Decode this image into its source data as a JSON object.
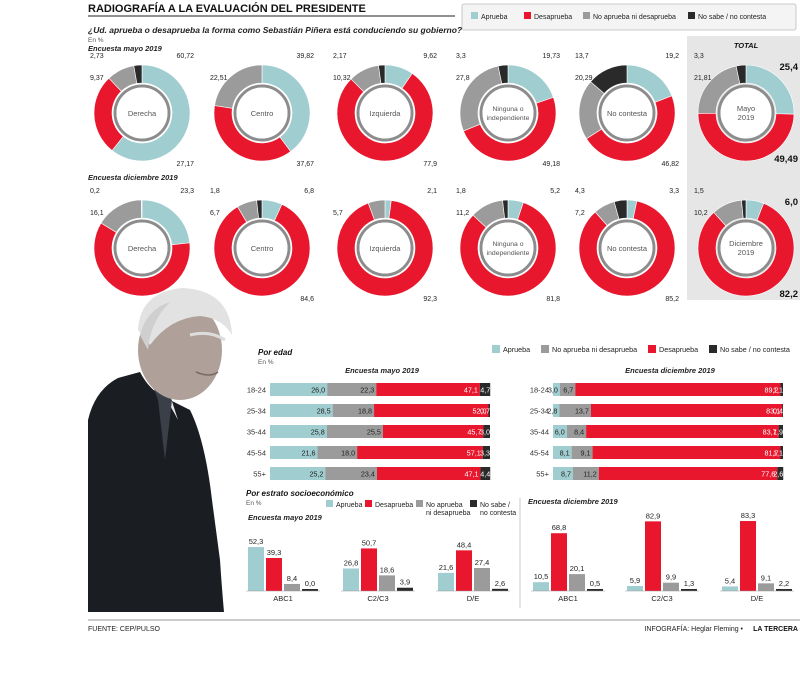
{
  "header": {
    "title": "RADIOGRAFÍA A LA EVALUACIÓN DEL PRESIDENTE",
    "question": "¿Ud. aprueba o desaprueba la forma como Sebastián Piñera está conduciendo su gobierno?",
    "unit": "En %",
    "survey_may": "Encuesta mayo 2019",
    "survey_dec": "Encuesta diciembre 2019",
    "total_label": "TOTAL"
  },
  "colors": {
    "aprueba": "#9fcdd0",
    "desaprueba": "#e8172d",
    "ninguno": "#9b9b9b",
    "nosabe": "#2a2a2a",
    "total_bg": "#e6e6e6"
  },
  "legend_top": [
    "Aprueba",
    "Desaprueba",
    "No aprueba ni desaprueba",
    "No sabe / no contesta"
  ],
  "legend_age": [
    "Aprueba",
    "No aprueba ni desaprueba",
    "Desaprueba",
    "No sabe / no contesta"
  ],
  "chart_data": [
    {
      "type": "pie",
      "title": "¿Ud. aprueba o desaprueba la forma como Sebastián Piñera está conduciendo su gobierno? — Encuesta mayo 2019",
      "categories": [
        "Aprueba",
        "Desaprueba",
        "No aprueba ni desaprueba",
        "No sabe / no contesta"
      ],
      "groups": [
        {
          "name": "Derecha",
          "values": [
            60.72,
            27.17,
            9.37,
            2.73
          ]
        },
        {
          "name": "Centro",
          "values": [
            39.82,
            37.67,
            22.51,
            0
          ]
        },
        {
          "name": "Izquierda",
          "values": [
            9.62,
            77.9,
            10.32,
            2.17
          ]
        },
        {
          "name": "Ninguna o independiente",
          "values": [
            19.73,
            49.18,
            27.8,
            3.3
          ]
        },
        {
          "name": "No contesta",
          "values": [
            19.2,
            46.82,
            20.29,
            13.7
          ]
        },
        {
          "name": "Mayo 2019",
          "values": [
            25.4,
            49.49,
            21.81,
            3.3
          ]
        }
      ]
    },
    {
      "type": "pie",
      "title": "¿Ud. aprueba o desaprueba la forma como Sebastián Piñera está conduciendo su gobierno? — Encuesta diciembre 2019",
      "categories": [
        "Aprueba",
        "Desaprueba",
        "No aprueba ni desaprueba",
        "No sabe / no contesta"
      ],
      "groups": [
        {
          "name": "Derecha",
          "values": [
            23.3,
            60.4,
            16.1,
            0.2
          ]
        },
        {
          "name": "Centro",
          "values": [
            6.8,
            84.6,
            6.7,
            1.8
          ]
        },
        {
          "name": "Izquierda",
          "values": [
            2.1,
            92.3,
            5.7,
            0
          ]
        },
        {
          "name": "Ninguna o independiente",
          "values": [
            5.2,
            81.8,
            11.2,
            1.8
          ]
        },
        {
          "name": "No contesta",
          "values": [
            3.3,
            85.2,
            7.2,
            4.3
          ]
        },
        {
          "name": "Diciembre 2019",
          "values": [
            6.0,
            82.2,
            10.2,
            1.5
          ]
        }
      ]
    },
    {
      "type": "bar",
      "title": "Por edad — Encuesta mayo 2019",
      "categories": [
        "18-24",
        "25-34",
        "35-44",
        "45-54",
        "55+"
      ],
      "series": [
        {
          "name": "Aprueba",
          "values": [
            26.0,
            28.5,
            25.8,
            21.6,
            25.2
          ]
        },
        {
          "name": "No aprueba ni desaprueba",
          "values": [
            22.3,
            18.8,
            25.5,
            18.0,
            23.4
          ]
        },
        {
          "name": "Desaprueba",
          "values": [
            47.1,
            52.0,
            45.7,
            57.1,
            47.1
          ]
        },
        {
          "name": "No sabe / no contesta",
          "values": [
            4.7,
            0.7,
            3.0,
            3.3,
            4.4
          ]
        }
      ]
    },
    {
      "type": "bar",
      "title": "Por edad — Encuesta diciembre 2019",
      "categories": [
        "18-24",
        "25-34",
        "35-44",
        "45-54",
        "55+"
      ],
      "series": [
        {
          "name": "Aprueba",
          "values": [
            3.0,
            2.8,
            6.0,
            8.1,
            8.7
          ]
        },
        {
          "name": "No aprueba ni desaprueba",
          "values": [
            6.7,
            13.7,
            8.4,
            9.1,
            11.2
          ]
        },
        {
          "name": "Desaprueba",
          "values": [
            89.2,
            83.1,
            83.7,
            81.7,
            77.6
          ]
        },
        {
          "name": "No sabe / no contesta",
          "values": [
            1.1,
            0.4,
            1.9,
            1.1,
            2.6
          ]
        }
      ]
    },
    {
      "type": "bar",
      "title": "Por estrato socioeconómico — Encuesta mayo 2019",
      "categories": [
        "ABC1",
        "C2/C3",
        "D/E"
      ],
      "series": [
        {
          "name": "Aprueba",
          "values": [
            52.3,
            26.8,
            21.6
          ]
        },
        {
          "name": "Desaprueba",
          "values": [
            39.3,
            50.7,
            48.4
          ]
        },
        {
          "name": "No aprueba ni desaprueba",
          "values": [
            8.4,
            18.6,
            27.4
          ]
        },
        {
          "name": "No sabe / no contesta",
          "values": [
            0.0,
            3.9,
            2.6
          ]
        }
      ]
    },
    {
      "type": "bar",
      "title": "Por estrato socioeconómico — Encuesta diciembre 2019",
      "categories": [
        "ABC1",
        "C2/C3",
        "D/E"
      ],
      "series": [
        {
          "name": "Aprueba",
          "values": [
            10.5,
            5.9,
            5.4
          ]
        },
        {
          "name": "Desaprueba",
          "values": [
            68.8,
            82.9,
            83.3
          ]
        },
        {
          "name": "No aprueba ni desaprueba",
          "values": [
            20.1,
            9.9,
            9.1
          ]
        },
        {
          "name": "No sabe / no contesta",
          "values": [
            0.5,
            1.3,
            2.2
          ]
        }
      ]
    }
  ],
  "donut_labels": {
    "may": [
      {
        "center": [
          "Derecha"
        ],
        "labels": [
          "60,72",
          "27,17",
          "9,37",
          "2,73"
        ]
      },
      {
        "center": [
          "Centro"
        ],
        "labels": [
          "39,82",
          "37,67",
          "22,51",
          ""
        ]
      },
      {
        "center": [
          "Izquierda"
        ],
        "labels": [
          "9,62",
          "77,9",
          "10,32",
          "2,17"
        ]
      },
      {
        "center": [
          "Ninguna o",
          "independiente"
        ],
        "labels": [
          "19,73",
          "49,18",
          "27,8",
          "3,3"
        ]
      },
      {
        "center": [
          "No contesta"
        ],
        "labels": [
          "19,2",
          "46,82",
          "20,29",
          "13,7"
        ]
      },
      {
        "center": [
          "Mayo",
          "2019"
        ],
        "labels": [
          "25,4",
          "49,49",
          "21,81",
          "3,3"
        ]
      }
    ],
    "dec": [
      {
        "center": [
          "Derecha"
        ],
        "labels": [
          "23,3",
          "",
          "16,1",
          "0,2"
        ]
      },
      {
        "center": [
          "Centro"
        ],
        "labels": [
          "6,8",
          "84,6",
          "6,7",
          "1,8"
        ]
      },
      {
        "center": [
          "Izquierda"
        ],
        "labels": [
          "2,1",
          "92,3",
          "5,7",
          ""
        ]
      },
      {
        "center": [
          "Ninguna o",
          "independiente"
        ],
        "labels": [
          "5,2",
          "81,8",
          "11,2",
          "1,8"
        ]
      },
      {
        "center": [
          "No contesta"
        ],
        "labels": [
          "3,3",
          "85,2",
          "7,2",
          "4,3"
        ]
      },
      {
        "center": [
          "Diciembre",
          "2019"
        ],
        "labels": [
          "6,0",
          "82,2",
          "10,2",
          "1,5"
        ]
      }
    ]
  },
  "age_section": {
    "title": "Por edad",
    "unit": "En %",
    "may_title": "Encuesta mayo 2019",
    "dec_title": "Encuesta diciembre 2019",
    "labels_may": [
      [
        "26,0",
        "22,3",
        "47,1",
        "4,7"
      ],
      [
        "28,5",
        "18,8",
        "52,0",
        "0,7"
      ],
      [
        "25,8",
        "25,5",
        "45,7",
        "3,0"
      ],
      [
        "21,6",
        "18,0",
        "57,1",
        "3,3"
      ],
      [
        "25,2",
        "23,4",
        "47,1",
        "4,4"
      ]
    ],
    "labels_dec": [
      [
        "3,0",
        "6,7",
        "89,2",
        "1,1"
      ],
      [
        "2,8",
        "13,7",
        "83,1",
        "0,4"
      ],
      [
        "6,0",
        "8,4",
        "83,7",
        "1,9"
      ],
      [
        "8,1",
        "9,1",
        "81,7",
        "1,1"
      ],
      [
        "8,7",
        "11,2",
        "77,6",
        "2,6"
      ]
    ]
  },
  "strata_section": {
    "title": "Por estrato socioeconómico",
    "unit": "En %",
    "may_title": "Encuesta mayo 2019",
    "dec_title": "Encuesta diciembre 2019",
    "legend": [
      "Aprueba",
      "Desaprueba",
      "No aprueba",
      "ni desaprueba",
      "No sabe /",
      "no contesta"
    ],
    "labels_may": [
      [
        "52,3",
        "39,3",
        "8,4",
        "0,0"
      ],
      [
        "26,8",
        "50,7",
        "18,6",
        "3,9"
      ],
      [
        "21,6",
        "48,4",
        "27,4",
        "2,6"
      ]
    ],
    "labels_dec": [
      [
        "10,5",
        "68,8",
        "20,1",
        "0,5"
      ],
      [
        "5,9",
        "82,9",
        "9,9",
        "1,3"
      ],
      [
        "5,4",
        "83,3",
        "9,1",
        "2,2"
      ]
    ]
  },
  "footer": {
    "source": "FUENTE: CEP/PULSO",
    "credit": "INFOGRAFÍA: Heglar Fleming •",
    "brand": "LA TERCERA"
  }
}
